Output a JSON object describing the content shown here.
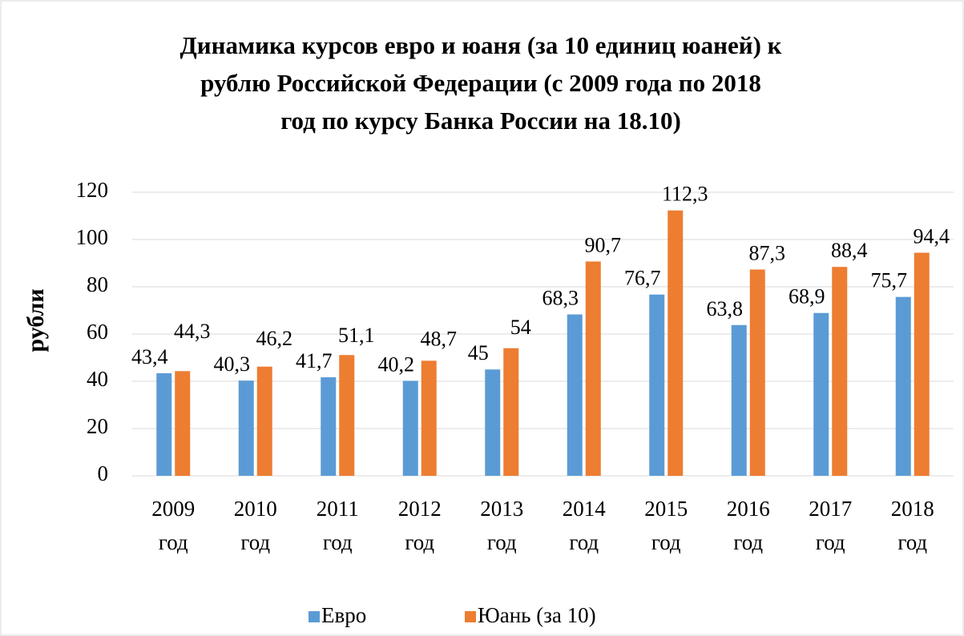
{
  "chart_data": {
    "type": "bar",
    "title": "Динамика курсов евро и юаня (за 10 единиц юаней) к рублю Российской Федерации (с 2009 года по 2018 год по курсу Банка России на 18.10)",
    "y_label": "рубли",
    "categories": [
      "2009 год",
      "2010 год",
      "2011 год",
      "2012 год",
      "2013 год",
      "2014 год",
      "2015 год",
      "2016 год",
      "2017 год",
      "2018 год"
    ],
    "series": [
      {
        "name": "Евро",
        "color": "#5b9bd5",
        "values": [
          43.4,
          40.3,
          41.7,
          40.2,
          45,
          68.3,
          76.7,
          63.8,
          68.9,
          75.7
        ],
        "value_labels": [
          "43,4",
          "40,3",
          "41,7",
          "40,2",
          "45",
          "68,3",
          "76,7",
          "63,8",
          "68,9",
          "75,7"
        ]
      },
      {
        "name": "Юань (за 10)",
        "color": "#ed7d31",
        "values": [
          44.3,
          46.2,
          51.1,
          48.7,
          54,
          90.7,
          112.3,
          87.3,
          88.4,
          94.4
        ],
        "value_labels": [
          "44,3",
          "46,2",
          "51,1",
          "48,7",
          "54",
          "90,7",
          "112,3",
          "87,3",
          "88,4",
          "94,4"
        ]
      }
    ],
    "ylim": [
      0,
      120
    ],
    "yticks": [
      0,
      20,
      40,
      60,
      80,
      100,
      120
    ],
    "grid": true,
    "legend": "bottom"
  }
}
